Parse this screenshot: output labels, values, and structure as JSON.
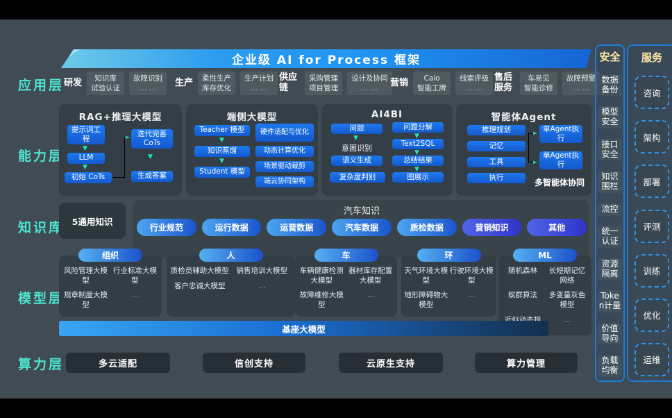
{
  "colors": {
    "accent_teal": "#23e0bd",
    "box_blue": "#1b6fe0",
    "banner_blue": "#2196f3",
    "side_header_gold": "#ffe9a8",
    "layer_label_teal": "#4ee3cf"
  },
  "banner": {
    "title": "企业级 AI for Process 框架"
  },
  "app_layer": {
    "label": "应用层",
    "groups": [
      {
        "name": "研发",
        "boxes": [
          [
            "知识库",
            "试验认证"
          ],
          [
            "故障识别",
            "… …"
          ]
        ]
      },
      {
        "name": "生产",
        "boxes": [
          [
            "柔性生产",
            "库存优化"
          ],
          [
            "生产计划",
            "… …"
          ]
        ]
      },
      {
        "name": "供应链",
        "boxes": [
          [
            "采购管理",
            "项目管理"
          ],
          [
            "设计及协同",
            "… …"
          ]
        ]
      },
      {
        "name": "营销",
        "boxes": [
          [
            "Caio",
            "智能工牌"
          ],
          [
            "线索评级",
            "… …"
          ]
        ]
      },
      {
        "name": "售后服务",
        "boxes": [
          [
            "车易见",
            "智能诊修"
          ],
          [
            "故障预警",
            "… …"
          ]
        ]
      }
    ]
  },
  "cap_layer": {
    "label": "能力层",
    "rag": {
      "title": "RAG+推理大模型",
      "prompt": "提示词工程",
      "llm": "LLM",
      "init": "初始 CoTs",
      "iter": "迭代完善CoTs",
      "answer": "生成答案"
    },
    "edge": {
      "title": "端侧大模型",
      "flow": [
        "Teacher 模型",
        "知识蒸馏",
        "Student 模型"
      ],
      "list": [
        "硬件适配与优化",
        "动态计算优化",
        "场景驱动裁剪",
        "端云协同架构"
      ]
    },
    "ai4bi": {
      "title": "AI4BI",
      "left": [
        "问题",
        "意图识别",
        "语义生成",
        "复杂度判别"
      ],
      "right": [
        "问题分解",
        "Text2SQL",
        "总结结果",
        "图展示"
      ]
    },
    "agent": {
      "title": "智能体Agent",
      "left": [
        "推理规划",
        "记忆",
        "工具",
        "执行"
      ],
      "right": [
        "单Agent执行",
        "单Agent执行"
      ],
      "caption": "多智能体协同"
    }
  },
  "knowledge_layer": {
    "label": "知识库",
    "general": "5通用知识",
    "domain_title": "汽车知识",
    "pills": [
      "行业规范",
      "运行数据",
      "运营数据",
      "汽车数据",
      "质检数据",
      "营销知识",
      "其他"
    ]
  },
  "model_layer": {
    "label": "模型层",
    "foundation": "基座大模型",
    "groups": [
      {
        "tag": "组织",
        "models": [
          "风险管理大模型",
          "行业标准大模型",
          "规章制度大模型",
          "…"
        ]
      },
      {
        "tag": "人",
        "models": [
          "质检员辅助大模型",
          "销售培训大模型",
          "客户忠诚大模型",
          "…"
        ]
      },
      {
        "tag": "车",
        "models": [
          "车辆健康检测大模型",
          "器材库存配置大模型",
          "故障维修大模型",
          "…"
        ]
      },
      {
        "tag": "环",
        "models": [
          "天气环境大模型",
          "行驶环境大模型",
          "地形障碍物大模型",
          "…"
        ]
      },
      {
        "tag": "ML",
        "models": [
          "随机森林",
          "长短期记忆网络",
          "蚁群算法",
          "多变量灰色模型",
          "近似动态规划",
          "…"
        ]
      }
    ]
  },
  "compute_layer": {
    "label": "算力层",
    "items": [
      "多云适配",
      "信创支持",
      "云原生支持",
      "算力管理"
    ]
  },
  "side": {
    "security": {
      "title": "安全",
      "items": [
        "数据备份",
        "模型安全",
        "接口安全",
        "知识围栏",
        "流控",
        "统一认证",
        "资源隔离",
        "Token计量",
        "价值导向",
        "负载均衡"
      ]
    },
    "service": {
      "title": "服务",
      "items": [
        "咨询",
        "架构",
        "部署",
        "评测",
        "训练",
        "优化",
        "运维"
      ]
    }
  }
}
